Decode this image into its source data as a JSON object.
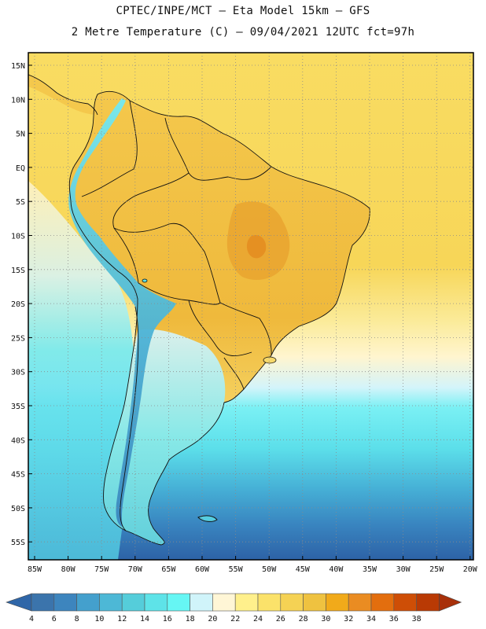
{
  "title_line1": "CPTEC/INPE/MCT –  Eta Model 15km – GFS",
  "title_line2": "2 Metre Temperature (C) – 09/04/2021 12UTC fct=97h",
  "lat_labels": [
    "15N",
    "10N",
    "5N",
    "EQ",
    "5S",
    "10S",
    "15S",
    "20S",
    "25S",
    "30S",
    "35S",
    "40S",
    "45S",
    "50S",
    "55S"
  ],
  "lon_labels": [
    "85W",
    "80W",
    "75W",
    "70W",
    "65W",
    "60W",
    "55W",
    "50W",
    "45W",
    "40W",
    "35W",
    "30W",
    "25W",
    "20W"
  ],
  "colorbar": {
    "ticks": [
      "4",
      "6",
      "8",
      "10",
      "12",
      "14",
      "16",
      "18",
      "20",
      "22",
      "24",
      "26",
      "28",
      "30",
      "32",
      "34",
      "36",
      "38"
    ],
    "colors": [
      "#3b74ac",
      "#3d85be",
      "#44a0cd",
      "#4db8d6",
      "#55cdda",
      "#5ee3e8",
      "#66f6f4",
      "#d0f4fa",
      "#fff6d6",
      "#fff08c",
      "#fbe26a",
      "#f5d254",
      "#efc240",
      "#f1aa1a",
      "#ea8c22",
      "#e36e0e",
      "#ce4e06",
      "#b93a04"
    ]
  },
  "colors": {
    "ocean_tropical": "#f6d352",
    "ocean_warm": "#fae47a",
    "land_warm": "#f3c54a",
    "land_hot": "#eda834",
    "ocean_cool": "#5fe0ec",
    "ocean_cold": "#3f95c8",
    "ocean_polar": "#2f66a8"
  }
}
